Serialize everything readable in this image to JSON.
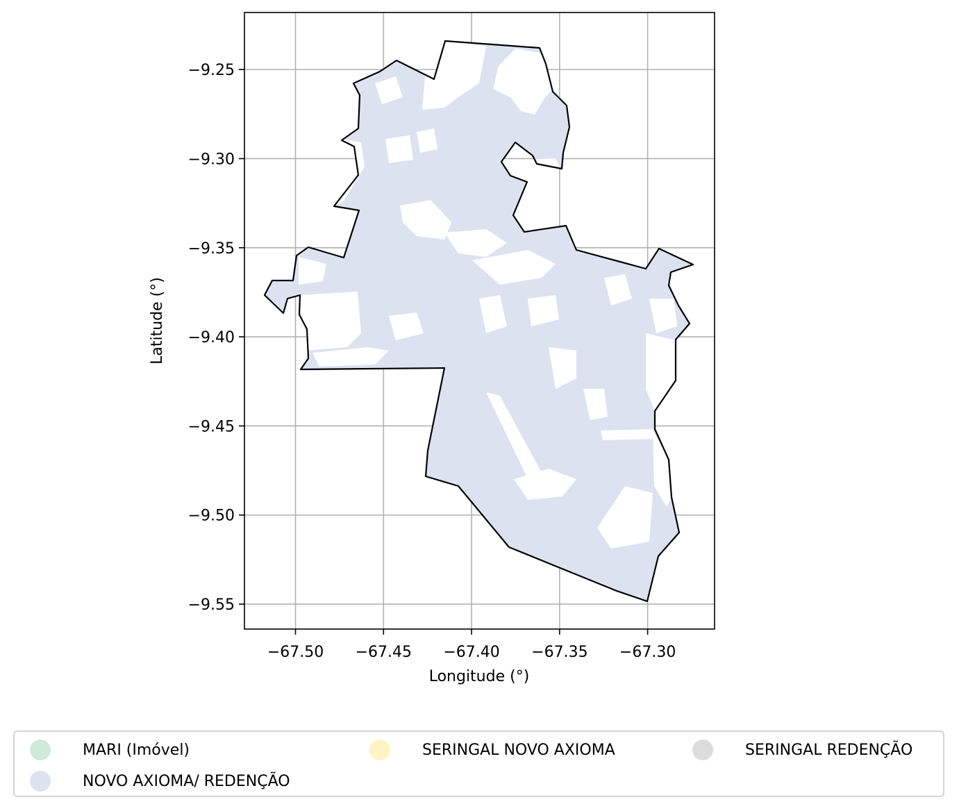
{
  "chart_data": {
    "type": "map",
    "x_axis": {
      "label": "Longitude (°)",
      "range": [
        -67.529,
        -67.262
      ],
      "ticks": [
        -67.5,
        -67.45,
        -67.4,
        -67.35,
        -67.3
      ],
      "tick_labels": [
        "−67.50",
        "−67.45",
        "−67.40",
        "−67.35",
        "−67.30"
      ]
    },
    "y_axis": {
      "label": "Latitude (°)",
      "range": [
        -9.564,
        -9.218
      ],
      "ticks": [
        -9.25,
        -9.3,
        -9.35,
        -9.4,
        -9.45,
        -9.5,
        -9.55
      ],
      "tick_labels": [
        "−9.25",
        "−9.30",
        "−9.35",
        "−9.40",
        "−9.45",
        "−9.50",
        "−9.55"
      ]
    },
    "grid": true,
    "legend_position": "bottom",
    "legend": [
      {
        "label": "MARI (Imóvel)",
        "color": "#cfeadb"
      },
      {
        "label": "SERINGAL NOVO AXIOMA",
        "color": "#fff2c4"
      },
      {
        "label": "SERINGAL REDENÇÃO",
        "color": "#dcdcdc"
      },
      {
        "label": "NOVO AXIOMA/ REDENÇÃO",
        "color": "#dde2f0"
      }
    ],
    "colors": {
      "fill": "#dde2f0",
      "boundary": "#000000",
      "grid": "#b0b0b0"
    }
  }
}
